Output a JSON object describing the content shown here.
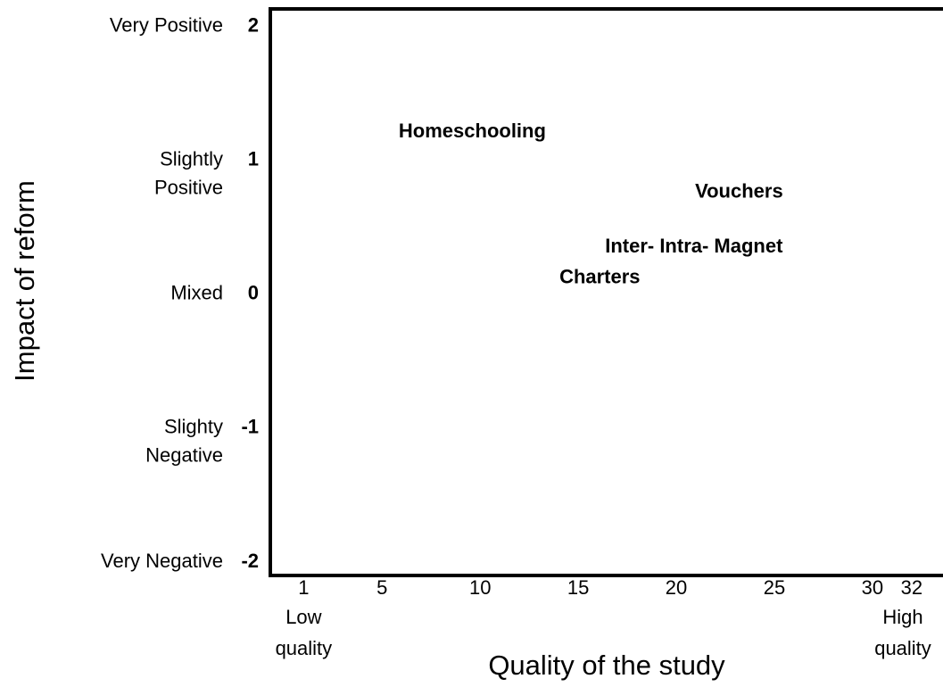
{
  "chart_data": {
    "type": "scatter",
    "x_label": "Quality of the study",
    "y_label": "Impact of reform",
    "xlim": [
      -0.7,
      33.6
    ],
    "ylim": [
      -2.1,
      2.13
    ],
    "xticks": [
      1,
      5,
      10,
      15,
      20,
      25,
      30,
      32
    ],
    "yticks": [
      2,
      1,
      0,
      -1,
      -2
    ],
    "y_level_labels": [
      [
        "Very Positive"
      ],
      [
        "Slightly",
        "Positive"
      ],
      [
        "Mixed"
      ],
      [
        "Slighty",
        "Negative"
      ],
      [
        "Very Negative"
      ]
    ],
    "x_end_labels": [
      {
        "x": 1,
        "lines": [
          "Low",
          "quality"
        ]
      },
      {
        "x": 32,
        "lines": [
          "High",
          "quality"
        ]
      }
    ],
    "points": [
      {
        "label": "Homeschooling",
        "x": 9.6,
        "y": 1.21
      },
      {
        "label": "Vouchers",
        "x": 23.2,
        "y": 0.76
      },
      {
        "label": "Inter- Intra- Magnet",
        "x": 20.9,
        "y": 0.35
      },
      {
        "label": "Charters",
        "x": 16.1,
        "y": 0.12
      }
    ]
  }
}
